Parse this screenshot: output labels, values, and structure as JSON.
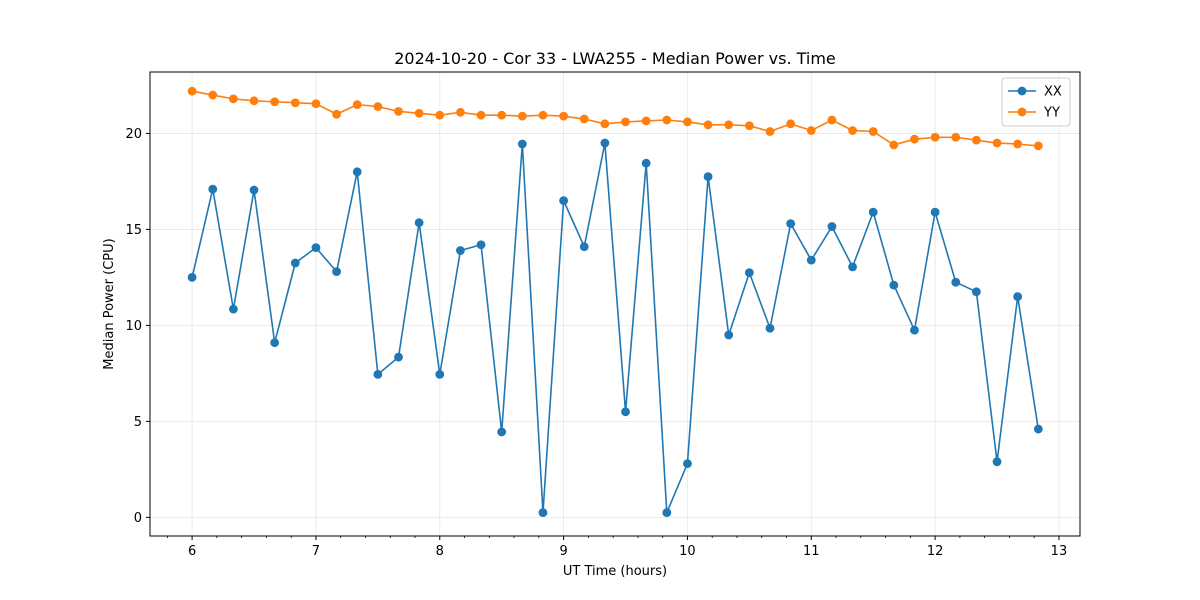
{
  "chart_data": {
    "type": "line",
    "title": "2024-10-20 - Cor 33 - LWA255 - Median Power vs. Time",
    "xlabel": "UT Time (hours)",
    "ylabel": "Median Power (CPU)",
    "xlim": [
      5.66,
      13.17
    ],
    "ylim": [
      -0.97,
      23.2
    ],
    "xticks": [
      6,
      7,
      8,
      9,
      10,
      11,
      12,
      13
    ],
    "xtick_labels": [
      "6",
      "7",
      "8",
      "9",
      "10",
      "11",
      "12",
      "13"
    ],
    "x_minor_step": 0.2,
    "yticks": [
      0,
      5,
      10,
      15,
      20
    ],
    "ytick_labels": [
      "0",
      "5",
      "10",
      "15",
      "20"
    ],
    "grid": true,
    "legend_position": "top-right",
    "x": [
      6.0,
      6.1667,
      6.3333,
      6.5,
      6.6667,
      6.8333,
      7.0,
      7.1667,
      7.3333,
      7.5,
      7.6667,
      7.8333,
      8.0,
      8.1667,
      8.3333,
      8.5,
      8.6667,
      8.8333,
      9.0,
      9.1667,
      9.3333,
      9.5,
      9.6667,
      9.8333,
      10.0,
      10.1667,
      10.3333,
      10.5,
      10.6667,
      10.8333,
      11.0,
      11.1667,
      11.3333,
      11.5,
      11.6667,
      11.8333,
      12.0,
      12.1667,
      12.3333,
      12.5,
      12.6667,
      12.8333
    ],
    "series": [
      {
        "name": "XX",
        "color": "#1f77b4",
        "values": [
          12.5,
          17.1,
          10.85,
          17.05,
          9.1,
          13.25,
          14.05,
          12.8,
          18.0,
          7.45,
          8.35,
          15.35,
          7.45,
          13.9,
          14.2,
          4.45,
          19.45,
          0.25,
          16.5,
          14.1,
          19.5,
          5.5,
          18.45,
          0.25,
          2.8,
          17.75,
          9.5,
          12.75,
          9.85,
          15.3,
          13.4,
          15.15,
          13.05,
          15.9,
          12.1,
          9.75,
          15.9,
          12.25,
          11.75,
          2.9,
          11.5,
          4.6
        ]
      },
      {
        "name": "YY",
        "color": "#ff7f0e",
        "values": [
          22.2,
          22.0,
          21.8,
          21.7,
          21.65,
          21.6,
          21.55,
          21.0,
          21.5,
          21.4,
          21.15,
          21.05,
          20.95,
          21.1,
          20.95,
          20.95,
          20.9,
          20.95,
          20.9,
          20.75,
          20.5,
          20.6,
          20.65,
          20.7,
          20.6,
          20.45,
          20.45,
          20.4,
          20.1,
          20.5,
          20.15,
          20.7,
          20.15,
          20.1,
          19.4,
          19.7,
          19.8,
          19.8,
          19.65,
          19.5,
          19.45,
          19.35
        ]
      }
    ]
  }
}
